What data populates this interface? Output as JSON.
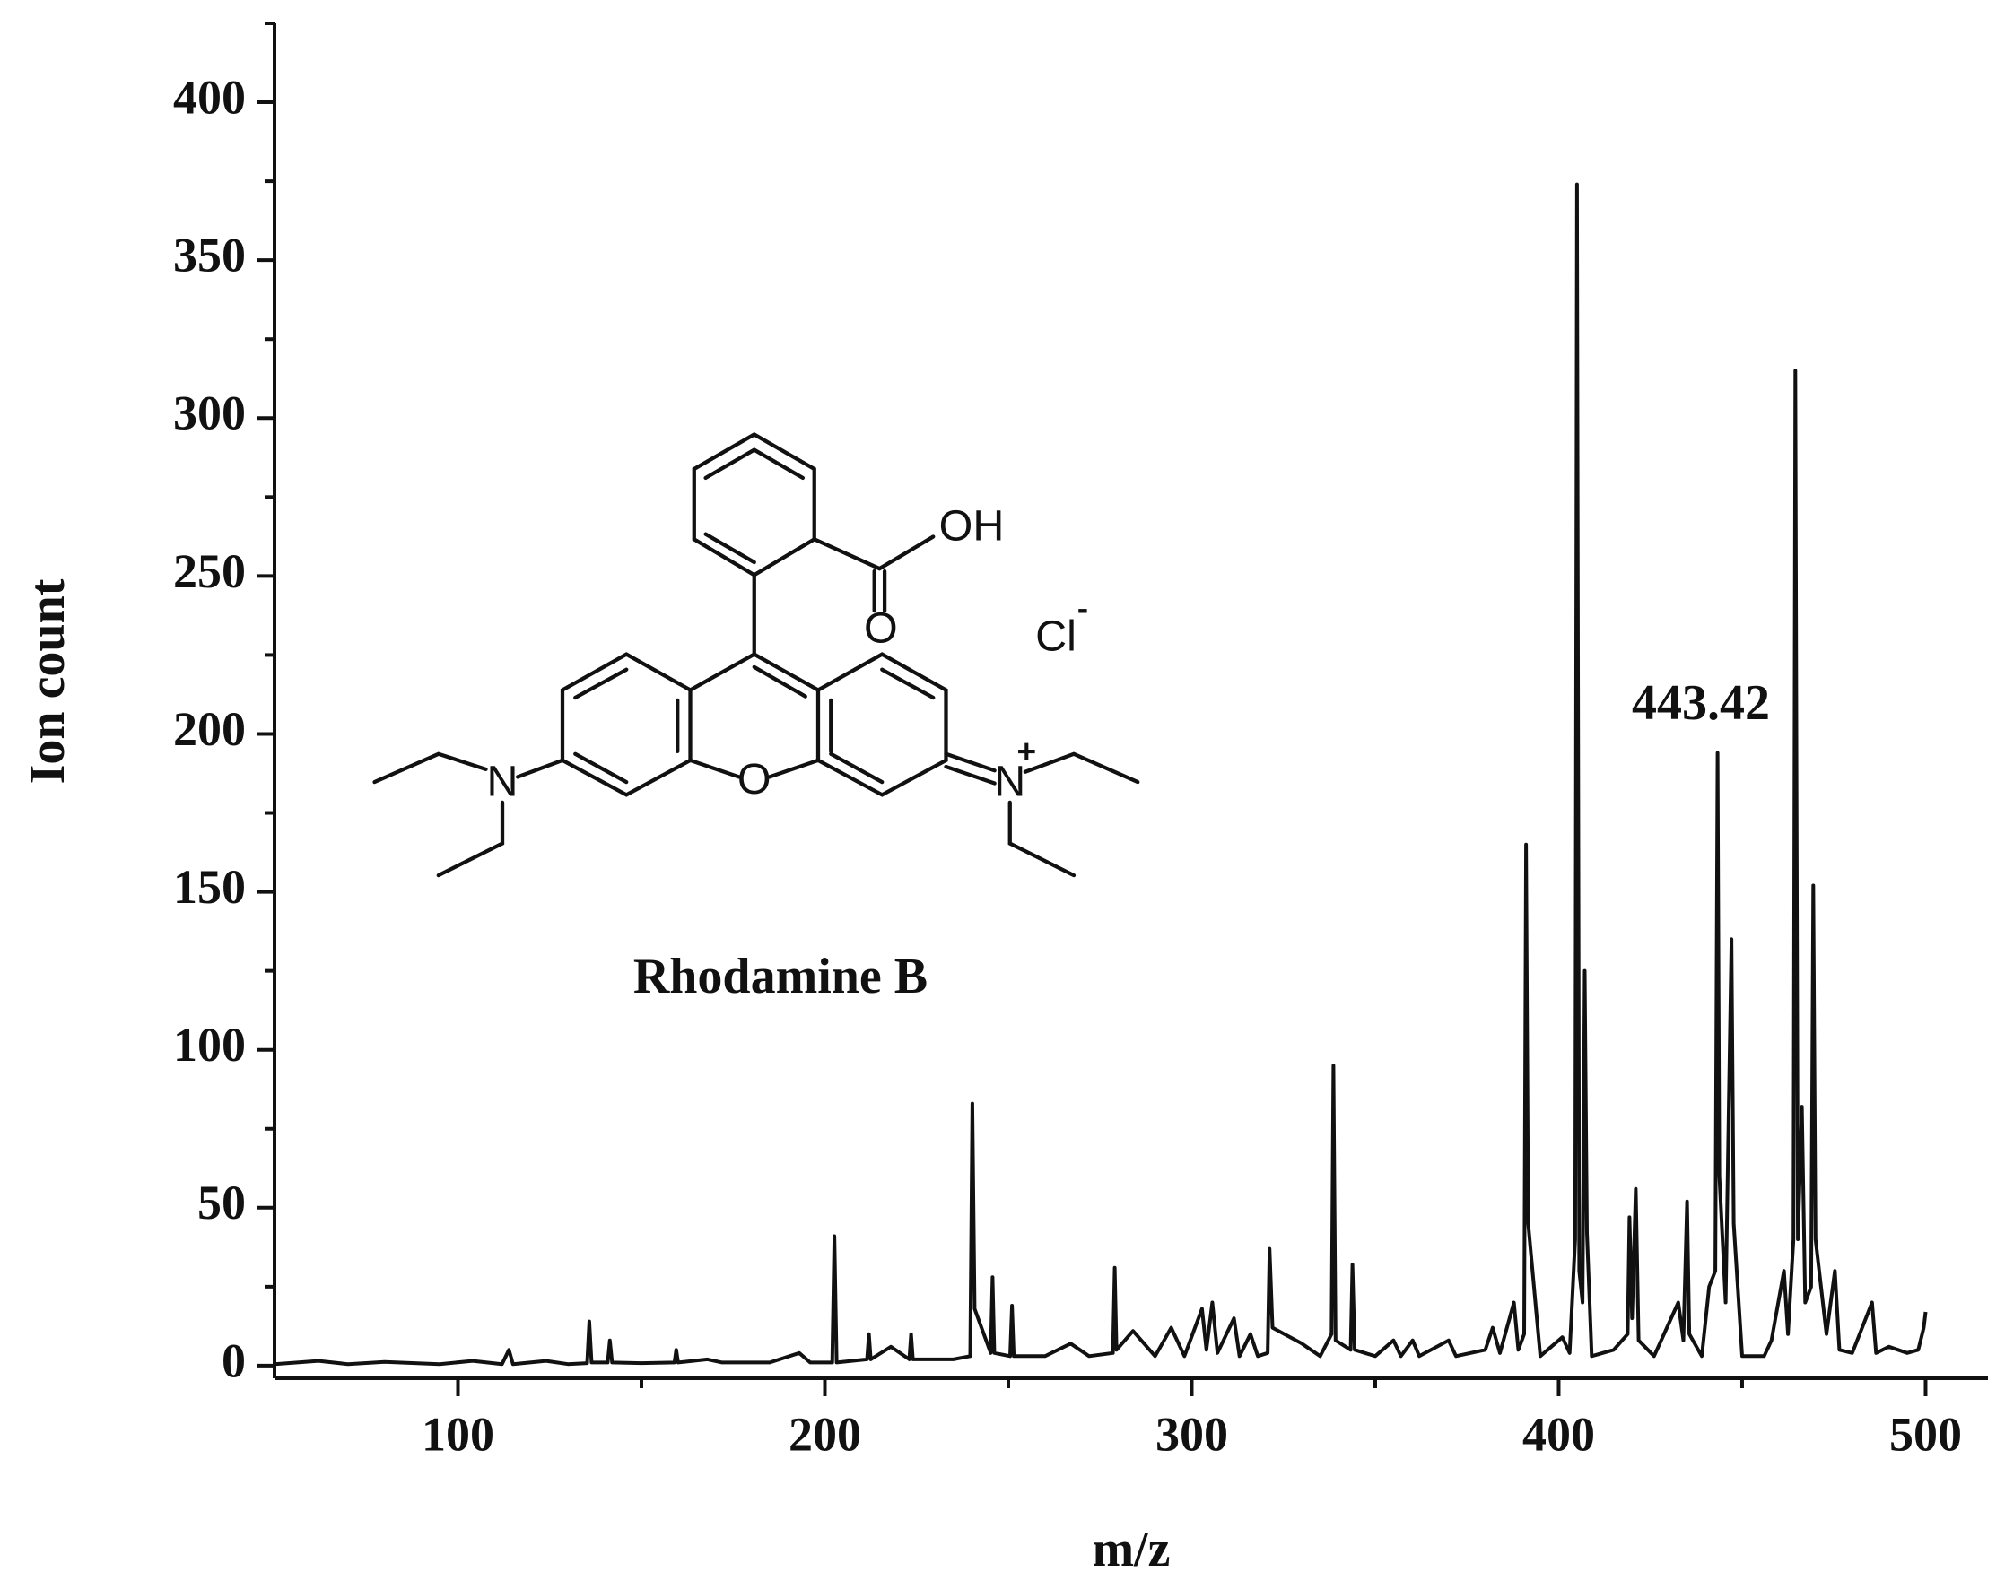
{
  "chart_data": {
    "type": "line",
    "x_label": "m/z",
    "y_label": "Ion count",
    "annotations": [
      "443.42",
      "Rhodamine B"
    ],
    "structure": {
      "atoms": [
        "OH",
        "O",
        "O",
        "N",
        "N",
        "Cl"
      ],
      "charges": [
        "+",
        "-"
      ]
    },
    "xlim": [
      50,
      517
    ],
    "ylim": [
      -4,
      425
    ],
    "xticks": [
      100,
      200,
      300,
      400,
      500
    ],
    "xticks_minor": [
      150,
      250,
      350,
      450
    ],
    "yticks": [
      0,
      50,
      100,
      150,
      200,
      250,
      300,
      350,
      400
    ],
    "yticks_minor": [
      25,
      75,
      125,
      175,
      225,
      275,
      325,
      375,
      425
    ],
    "color": "#111111",
    "x": [
      50,
      62,
      70,
      80,
      95,
      104,
      112,
      113.9,
      115,
      124,
      130,
      135.2,
      135.8,
      136.4,
      140.8,
      141.4,
      142,
      150,
      159,
      159.5,
      160,
      168,
      172,
      185,
      193,
      196,
      202,
      202.6,
      203.2,
      211.5,
      212,
      212.5,
      218,
      223,
      223.5,
      224,
      235,
      239.6,
      240.2,
      240.8,
      245.2,
      245.7,
      246.2,
      250.5,
      251,
      251.5,
      260,
      267,
      272,
      278.5,
      279,
      279.5,
      284,
      290,
      294.4,
      298,
      302.8,
      304,
      305.6,
      307,
      311.5,
      313,
      316,
      318,
      320.7,
      321.2,
      322,
      330,
      335,
      338.1,
      338.6,
      339.2,
      343.3,
      343.8,
      344.4,
      350,
      355,
      357,
      360.2,
      362,
      370,
      372,
      380,
      382,
      384,
      387.8,
      389,
      390.6,
      391.1,
      391.7,
      395,
      401,
      403,
      404.5,
      405,
      405.6,
      406.5,
      407.1,
      407.7,
      409,
      415,
      418.8,
      419.3,
      420,
      421,
      421.8,
      426,
      432.6,
      434,
      435,
      435.6,
      439,
      441,
      442.7,
      443.3,
      443.8,
      445.5,
      447.1,
      447.7,
      450,
      456,
      458,
      461.4,
      462.5,
      464,
      464.5,
      465.2,
      466.3,
      467.2,
      468.8,
      469.4,
      470,
      473,
      475.3,
      476.5,
      480,
      485.4,
      486.5,
      490,
      495,
      498,
      499.5,
      500
    ],
    "values": [
      0.5,
      1.5,
      0.5,
      1.2,
      0.5,
      1.5,
      0.5,
      5,
      0.5,
      1.5,
      0.5,
      0.8,
      14,
      1,
      1,
      8,
      1,
      0.8,
      1,
      5,
      1,
      2,
      1,
      1,
      4,
      1,
      1,
      41,
      1,
      2,
      10,
      2,
      6,
      2,
      10,
      2,
      2,
      3,
      83,
      18,
      4,
      28,
      4,
      3,
      19,
      3,
      3,
      7,
      3,
      4,
      31,
      5,
      11,
      3,
      12,
      3,
      18,
      5,
      20,
      4,
      15,
      3,
      10,
      3,
      4,
      37,
      12,
      7,
      3,
      10,
      95,
      8,
      5,
      32,
      5,
      3,
      8,
      3,
      8,
      3,
      8,
      3,
      5,
      12,
      4,
      20,
      5,
      10,
      165,
      45,
      3,
      9,
      4,
      40,
      374,
      30,
      20,
      125,
      42,
      3,
      5,
      10,
      47,
      15,
      56,
      8,
      3,
      20,
      8,
      52,
      10,
      3,
      25,
      30,
      194,
      60,
      20,
      135,
      45,
      3,
      3,
      8,
      30,
      10,
      40,
      315,
      40,
      82,
      20,
      25,
      152,
      40,
      10,
      30,
      5,
      4,
      20,
      4,
      6,
      4,
      5,
      12,
      17
    ]
  }
}
